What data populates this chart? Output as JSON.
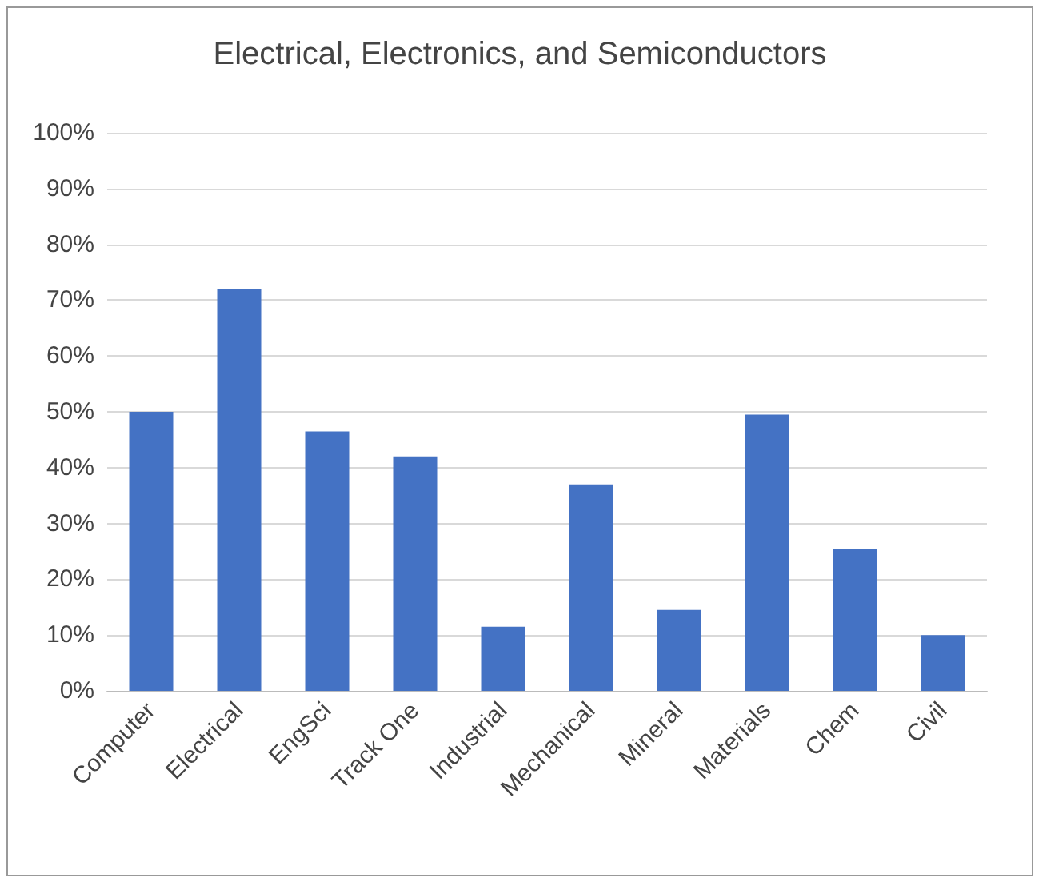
{
  "chart_data": {
    "type": "bar",
    "title": "Electrical, Electronics, and Semiconductors",
    "categories": [
      "Computer",
      "Electrical",
      "EngSci",
      "Track One",
      "Industrial",
      "Mechanical",
      "Mineral",
      "Materials",
      "Chem",
      "Civil"
    ],
    "values": [
      50,
      72,
      46.5,
      42,
      11.5,
      37,
      14.5,
      49.5,
      25.5,
      10
    ],
    "color": "#4472c4",
    "ylim": [
      0,
      100
    ],
    "yticks": [
      {
        "value": 0,
        "label": "0%"
      },
      {
        "value": 10,
        "label": "10%"
      },
      {
        "value": 20,
        "label": "20%"
      },
      {
        "value": 30,
        "label": "30%"
      },
      {
        "value": 40,
        "label": "40%"
      },
      {
        "value": 50,
        "label": "50%"
      },
      {
        "value": 60,
        "label": "60%"
      },
      {
        "value": 70,
        "label": "70%"
      },
      {
        "value": 80,
        "label": "80%"
      },
      {
        "value": 90,
        "label": "90%"
      },
      {
        "value": 100,
        "label": "100%"
      }
    ],
    "grid": "y"
  }
}
